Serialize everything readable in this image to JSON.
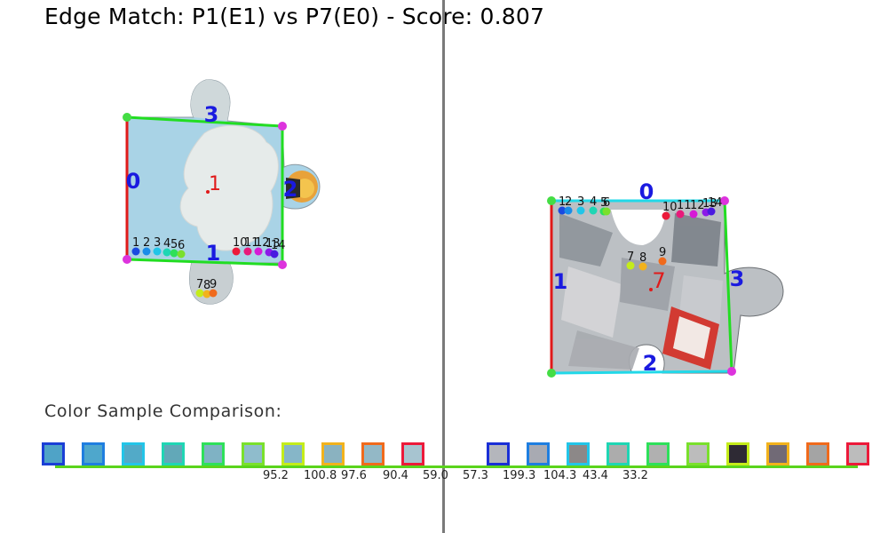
{
  "title": "Edge Match: P1(E1) vs P7(E0) - Score: 0.807",
  "color_sample_label": "Color Sample Comparison:",
  "left_piece": {
    "id_label": "1",
    "edge_labels": [
      "0",
      "1",
      "2",
      "3"
    ],
    "sample_labels": [
      "1",
      "2",
      "3",
      "4",
      "5",
      "6",
      "7",
      "8",
      "9",
      "10",
      "11",
      "12",
      "13",
      "14"
    ]
  },
  "right_piece": {
    "id_label": "7",
    "edge_labels": [
      "0",
      "1",
      "2",
      "3"
    ],
    "sample_labels": [
      "1",
      "2",
      "3",
      "4",
      "5",
      "6",
      "7",
      "8",
      "9",
      "10",
      "11",
      "12",
      "13",
      "14"
    ]
  },
  "left_swatches": [
    {
      "fill": "#4fa3c7",
      "border": "#1a3fd6"
    },
    {
      "fill": "#4ea7cc",
      "border": "#1f7ee0"
    },
    {
      "fill": "#52aac8",
      "border": "#22c5e8"
    },
    {
      "fill": "#62a8b8",
      "border": "#1fd6b4"
    },
    {
      "fill": "#7fb2c4",
      "border": "#2ee05a"
    },
    {
      "fill": "#8fbccc",
      "border": "#7ae02c"
    },
    {
      "fill": "#86b6c8",
      "border": "#c4ec1a"
    },
    {
      "fill": "#8ab2c0",
      "border": "#f2b21c"
    },
    {
      "fill": "#93b8c6",
      "border": "#f06a1c"
    },
    {
      "fill": "#a7c4d0",
      "border": "#ec1a3a"
    }
  ],
  "right_swatches": [
    {
      "fill": "#b4b6bc",
      "border": "#1a2fd6"
    },
    {
      "fill": "#a8aab2",
      "border": "#1f7ee0"
    },
    {
      "fill": "#8c8888",
      "border": "#22c5e8"
    },
    {
      "fill": "#acacac",
      "border": "#1fd6b4"
    },
    {
      "fill": "#b0b0b0",
      "border": "#2ee05a"
    },
    {
      "fill": "#bcbcbc",
      "border": "#7ae02c"
    },
    {
      "fill": "#2e2a34",
      "border": "#c4ec1a"
    },
    {
      "fill": "#716a76",
      "border": "#f2b21c"
    },
    {
      "fill": "#a4a4a4",
      "border": "#f06a1c"
    },
    {
      "fill": "#bcbcbc",
      "border": "#ec1a3a"
    }
  ],
  "color_diffs": [
    "95.2",
    "100.8",
    "97.6",
    "90.4",
    "59.0",
    "57.3",
    "199.3",
    "104.3",
    "43.4",
    "33.2"
  ]
}
